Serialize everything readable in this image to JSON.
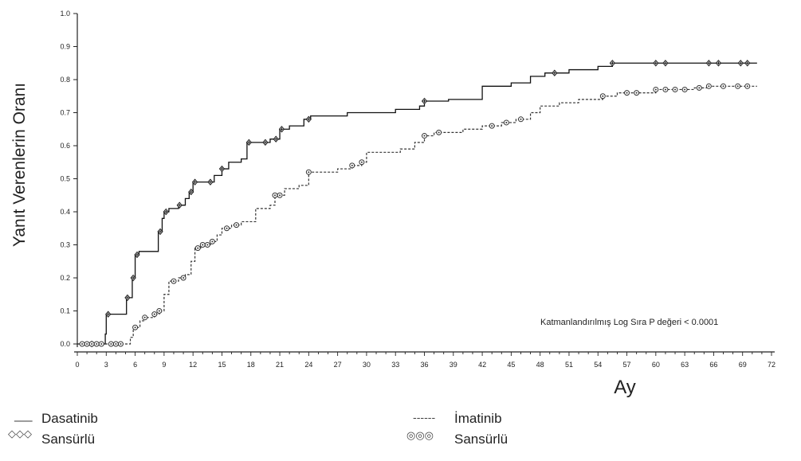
{
  "chart_data": {
    "type": "line",
    "ylabel": "Yanıt Verenlerin Oranı",
    "xlabel": "Ay",
    "annotation": "Katmanlandırılmış Log Sıra P değeri < 0.0001",
    "xlim": [
      0,
      72
    ],
    "ylim": [
      0,
      1.0
    ],
    "x_ticks": [
      "0",
      "3",
      "6",
      "9",
      "12",
      "15",
      "18",
      "21",
      "24",
      "27",
      "30",
      "33",
      "36",
      "39",
      "42",
      "45",
      "48",
      "51",
      "54",
      "57",
      "60",
      "63",
      "66",
      "69",
      "72"
    ],
    "y_ticks": [
      "0.0",
      "0.1",
      "0.2",
      "0.3",
      "0.4",
      "0.5",
      "0.6",
      "0.7",
      "0.8",
      "0.9",
      "1.0"
    ],
    "grid": false,
    "series": [
      {
        "name": "Dasatinib",
        "line_style": "solid",
        "censor_marker": "plus-diamond",
        "steps": [
          [
            0,
            0
          ],
          [
            2.9,
            0
          ],
          [
            2.9,
            0.03
          ],
          [
            3.0,
            0.09
          ],
          [
            4.5,
            0.09
          ],
          [
            5.1,
            0.09
          ],
          [
            5.1,
            0.14
          ],
          [
            5.7,
            0.2
          ],
          [
            6.0,
            0.27
          ],
          [
            6.4,
            0.28
          ],
          [
            8.3,
            0.28
          ],
          [
            8.4,
            0.34
          ],
          [
            8.8,
            0.38
          ],
          [
            9.0,
            0.4
          ],
          [
            9.5,
            0.41
          ],
          [
            10.5,
            0.42
          ],
          [
            11.2,
            0.44
          ],
          [
            11.6,
            0.46
          ],
          [
            12.0,
            0.49
          ],
          [
            13.5,
            0.49
          ],
          [
            14.2,
            0.51
          ],
          [
            15.0,
            0.53
          ],
          [
            15.7,
            0.55
          ],
          [
            17.0,
            0.56
          ],
          [
            17.6,
            0.61
          ],
          [
            19.2,
            0.61
          ],
          [
            20.0,
            0.62
          ],
          [
            21.0,
            0.65
          ],
          [
            22.0,
            0.66
          ],
          [
            23.5,
            0.68
          ],
          [
            24.2,
            0.69
          ],
          [
            27.5,
            0.69
          ],
          [
            28.0,
            0.7
          ],
          [
            33.0,
            0.71
          ],
          [
            35.5,
            0.72
          ],
          [
            36.0,
            0.735
          ],
          [
            38.5,
            0.74
          ],
          [
            41.0,
            0.74
          ],
          [
            42.0,
            0.78
          ],
          [
            45.0,
            0.79
          ],
          [
            47.0,
            0.81
          ],
          [
            48.5,
            0.82
          ],
          [
            51.0,
            0.83
          ],
          [
            54.0,
            0.84
          ],
          [
            55.5,
            0.85
          ],
          [
            70.5,
            0.85
          ]
        ],
        "censored_x": [
          1.5,
          3.2,
          5.2,
          5.8,
          6.2,
          8.6,
          9.2,
          10.6,
          11.8,
          12.2,
          13.8,
          15.0,
          17.8,
          19.5,
          20.6,
          21.2,
          24.0,
          36.0,
          49.5,
          55.5,
          60.0,
          61.0,
          65.5,
          66.5,
          68.8,
          69.5
        ]
      },
      {
        "name": "İmatinib",
        "line_style": "dashed",
        "censor_marker": "circle",
        "steps": [
          [
            0,
            0
          ],
          [
            5.0,
            0
          ],
          [
            5.5,
            0.02
          ],
          [
            5.8,
            0.05
          ],
          [
            6.5,
            0.07
          ],
          [
            7.0,
            0.08
          ],
          [
            8.0,
            0.09
          ],
          [
            8.5,
            0.1
          ],
          [
            9.0,
            0.15
          ],
          [
            9.5,
            0.19
          ],
          [
            10.5,
            0.2
          ],
          [
            11.2,
            0.21
          ],
          [
            11.8,
            0.25
          ],
          [
            12.2,
            0.29
          ],
          [
            12.8,
            0.3
          ],
          [
            13.8,
            0.31
          ],
          [
            14.5,
            0.33
          ],
          [
            15.0,
            0.35
          ],
          [
            16.0,
            0.36
          ],
          [
            17.0,
            0.37
          ],
          [
            18.5,
            0.41
          ],
          [
            20.0,
            0.42
          ],
          [
            20.5,
            0.45
          ],
          [
            21.5,
            0.47
          ],
          [
            23.0,
            0.48
          ],
          [
            24.0,
            0.52
          ],
          [
            25.5,
            0.52
          ],
          [
            27.0,
            0.53
          ],
          [
            28.5,
            0.54
          ],
          [
            29.5,
            0.55
          ],
          [
            30.0,
            0.58
          ],
          [
            33.5,
            0.59
          ],
          [
            35.0,
            0.61
          ],
          [
            36.0,
            0.63
          ],
          [
            37.0,
            0.64
          ],
          [
            40.0,
            0.65
          ],
          [
            42.0,
            0.66
          ],
          [
            44.0,
            0.67
          ],
          [
            45.5,
            0.68
          ],
          [
            47.0,
            0.7
          ],
          [
            48.0,
            0.72
          ],
          [
            50.0,
            0.73
          ],
          [
            52.0,
            0.74
          ],
          [
            54.5,
            0.75
          ],
          [
            56.0,
            0.76
          ],
          [
            60.0,
            0.77
          ],
          [
            64.0,
            0.775
          ],
          [
            65.5,
            0.78
          ],
          [
            70.5,
            0.78
          ]
        ],
        "censored_x": [
          0.5,
          1.0,
          1.5,
          2.0,
          2.5,
          3.5,
          4.0,
          4.5,
          6.0,
          7.0,
          8.0,
          8.5,
          10.0,
          11.0,
          12.5,
          13.0,
          13.5,
          14.0,
          15.5,
          16.5,
          20.5,
          21.0,
          24.0,
          28.5,
          29.5,
          36.0,
          37.5,
          43.0,
          44.5,
          46.0,
          54.5,
          57.0,
          58.0,
          60.0,
          61.0,
          62.0,
          63.0,
          64.5,
          65.5,
          67.0,
          68.5,
          69.5
        ]
      }
    ]
  },
  "legend": {
    "dasatinib_line_symbol": "___",
    "dasatinib_label": "Dasatinib",
    "dasatinib_censor_symbol": "◇◇◇",
    "dasatinib_censor_label": "Sansürlü",
    "imatinib_line_symbol": "------",
    "imatinib_label": "İmatinib",
    "imatinib_censor_symbol": "◎◎◎",
    "imatinib_censor_label": "Sansürlü"
  }
}
